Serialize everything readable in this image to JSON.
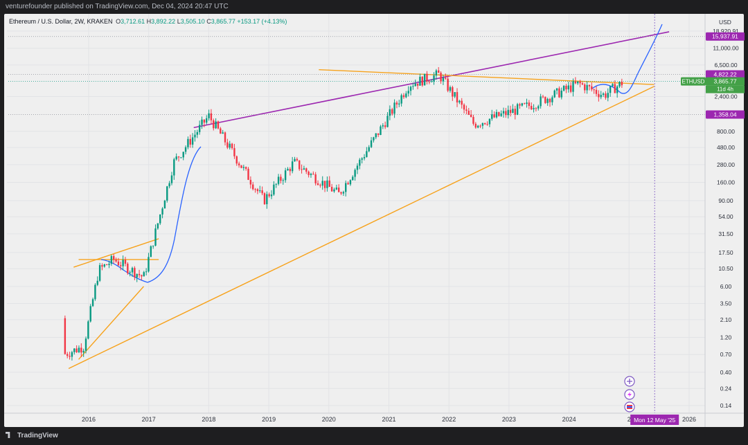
{
  "header": {
    "publisher_line": "venturefounder published on TradingView.com, Dec 04, 2024 20:47 UTC"
  },
  "legend": {
    "symbol": "Ethereum / U.S. Dollar, 2W, KRAKEN",
    "open_label": "O",
    "open": "3,712.61",
    "high_label": "H",
    "high": "3,892.22",
    "low_label": "L",
    "low": "3,505.10",
    "close_label": "C",
    "close": "3,865.77",
    "change": "+153.17 (+4.13%)"
  },
  "footer": {
    "brand": "TradingView"
  },
  "colors": {
    "up": "#089981",
    "down": "#f23645",
    "purple_line": "#9c27b0",
    "orange_line": "#f7a21b",
    "projection": "#2962ff",
    "close_badge": "#43a047",
    "level_badge": "#9c27b0"
  },
  "icons": [
    "add-drawing-icon",
    "lightning-icon",
    "flag-icon"
  ],
  "chart_data": {
    "type": "candlestick",
    "scale": "log",
    "currency_label": "USD",
    "x_ticks": [
      "2016",
      "2017",
      "2018",
      "2019",
      "2020",
      "2021",
      "2022",
      "2023",
      "2024",
      "2",
      "2026"
    ],
    "y_ticks": [
      "0.14",
      "0.24",
      "0.40",
      "0.70",
      "1.20",
      "2.10",
      "3.50",
      "6.00",
      "10.50",
      "17.50",
      "31.50",
      "54.00",
      "90.00",
      "160.00",
      "280.00",
      "480.00",
      "800.00",
      "1,358.04",
      "2,400.00",
      "3,865.77",
      "4,822.22",
      "6,500.00",
      "11,000.00",
      "15,937.91",
      "18,920.91"
    ],
    "ylim": [
      0.11,
      24000
    ],
    "price_labels": [
      {
        "price": 15937.91,
        "text": "15,937.91",
        "type": "level"
      },
      {
        "price": 4822.22,
        "text": "4,822.22",
        "type": "level"
      },
      {
        "price": 3865.77,
        "text": "3,865.77",
        "type": "close",
        "symbol": "ETHUSD",
        "countdown": "11d 4h"
      },
      {
        "price": 1358.04,
        "text": "1,358.04",
        "type": "level"
      }
    ],
    "crosshair_date": "Mon 12 May '25",
    "approx_prices": [
      {
        "date": "2015-08",
        "close": 0.7
      },
      {
        "date": "2015-12",
        "close": 0.9
      },
      {
        "date": "2016-03",
        "close": 10
      },
      {
        "date": "2016-06",
        "close": 14
      },
      {
        "date": "2016-12",
        "close": 8
      },
      {
        "date": "2017-06",
        "close": 300
      },
      {
        "date": "2018-01",
        "close": 1300
      },
      {
        "date": "2018-12",
        "close": 90
      },
      {
        "date": "2019-06",
        "close": 300
      },
      {
        "date": "2020-03",
        "close": 110
      },
      {
        "date": "2021-05",
        "close": 3500
      },
      {
        "date": "2021-11",
        "close": 4800
      },
      {
        "date": "2022-06",
        "close": 1000
      },
      {
        "date": "2023-06",
        "close": 1900
      },
      {
        "date": "2024-03",
        "close": 3600
      },
      {
        "date": "2024-08",
        "close": 2500
      },
      {
        "date": "2024-12",
        "close": 3865.77
      }
    ],
    "drawings": [
      {
        "name": "purple-resistance-line",
        "from": {
          "date": "2017-10",
          "price": 900
        },
        "to": {
          "date": "2025-09",
          "price": 18500
        }
      },
      {
        "name": "orange-support-line",
        "from": {
          "date": "2015-09",
          "price": 0.45
        },
        "to": {
          "date": "2025-06",
          "price": 3300
        }
      },
      {
        "name": "orange-upper-trend-line",
        "from": {
          "date": "2019-11",
          "price": 5600
        },
        "to": {
          "date": "2025-06",
          "price": 3500
        }
      },
      {
        "name": "orange-2016-resistance",
        "from": {
          "date": "2015-10",
          "price": 11
        },
        "to": {
          "date": "2017-03",
          "price": 27
        }
      },
      {
        "name": "orange-2016-flat-top",
        "from": {
          "date": "2015-11",
          "price": 14
        },
        "to": {
          "date": "2017-03",
          "price": 14
        }
      },
      {
        "name": "orange-2016-support",
        "from": {
          "date": "2015-11",
          "price": 0.6
        },
        "to": {
          "date": "2016-12",
          "price": 6
        }
      }
    ]
  }
}
